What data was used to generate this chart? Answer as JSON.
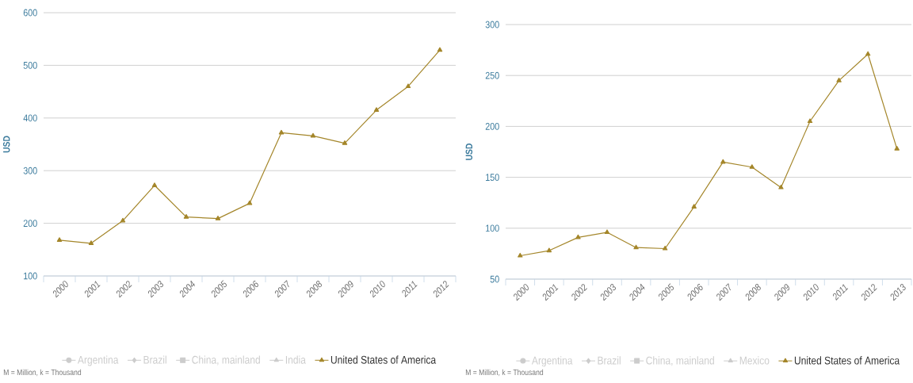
{
  "chart_data": [
    {
      "type": "line",
      "ylabel": "USD",
      "categories": [
        "2000",
        "2001",
        "2002",
        "2003",
        "2004",
        "2005",
        "2006",
        "2007",
        "2008",
        "2009",
        "2010",
        "2011",
        "2012"
      ],
      "series": [
        {
          "name": "Argentina",
          "color": "#cccccc",
          "marker": "circle",
          "values": [
            null,
            null,
            null,
            null,
            null,
            null,
            null,
            null,
            null,
            null,
            null,
            null,
            null
          ]
        },
        {
          "name": "Brazil",
          "color": "#cccccc",
          "marker": "diamond",
          "values": [
            null,
            null,
            null,
            null,
            null,
            null,
            null,
            null,
            null,
            null,
            null,
            null,
            null
          ]
        },
        {
          "name": "China, mainland",
          "color": "#cccccc",
          "marker": "square",
          "values": [
            null,
            null,
            null,
            null,
            null,
            null,
            null,
            null,
            null,
            null,
            null,
            null,
            null
          ]
        },
        {
          "name": "India",
          "color": "#cccccc",
          "marker": "triangle",
          "values": [
            null,
            null,
            null,
            null,
            null,
            null,
            null,
            null,
            null,
            null,
            null,
            null,
            null
          ]
        },
        {
          "name": "United States of America",
          "color": "#a4862a",
          "marker": "triangle",
          "values": [
            168,
            162,
            205,
            272,
            212,
            209,
            238,
            372,
            366,
            352,
            415,
            460,
            529
          ]
        }
      ],
      "ylim": [
        100,
        600
      ],
      "yticks": [
        100,
        200,
        300,
        400,
        500,
        600
      ],
      "grid": "y",
      "legend": "bottom",
      "annotations": [
        "M = Million, k = Thousand"
      ]
    },
    {
      "type": "line",
      "ylabel": "USD",
      "categories": [
        "2000",
        "2001",
        "2002",
        "2003",
        "2004",
        "2005",
        "2006",
        "2007",
        "2008",
        "2009",
        "2010",
        "2011",
        "2012",
        "2013"
      ],
      "series": [
        {
          "name": "Argentina",
          "color": "#cccccc",
          "marker": "circle",
          "values": [
            null,
            null,
            null,
            null,
            null,
            null,
            null,
            null,
            null,
            null,
            null,
            null,
            null,
            null
          ]
        },
        {
          "name": "Brazil",
          "color": "#cccccc",
          "marker": "diamond",
          "values": [
            null,
            null,
            null,
            null,
            null,
            null,
            null,
            null,
            null,
            null,
            null,
            null,
            null,
            null
          ]
        },
        {
          "name": "China, mainland",
          "color": "#cccccc",
          "marker": "square",
          "values": [
            null,
            null,
            null,
            null,
            null,
            null,
            null,
            null,
            null,
            null,
            null,
            null,
            null,
            null
          ]
        },
        {
          "name": "Mexico",
          "color": "#cccccc",
          "marker": "triangle",
          "values": [
            null,
            null,
            null,
            null,
            null,
            null,
            null,
            null,
            null,
            null,
            null,
            null,
            null,
            null
          ]
        },
        {
          "name": "United States of America",
          "color": "#a4862a",
          "marker": "triangle",
          "values": [
            73,
            78,
            91,
            96,
            81,
            80,
            121,
            165,
            160,
            140,
            205,
            245,
            271,
            178
          ]
        }
      ],
      "ylim": [
        50,
        300
      ],
      "yticks": [
        50,
        100,
        150,
        200,
        250,
        300
      ],
      "grid": "y",
      "legend": "bottom",
      "annotations": [
        "M = Million, k = Thousand"
      ]
    }
  ]
}
